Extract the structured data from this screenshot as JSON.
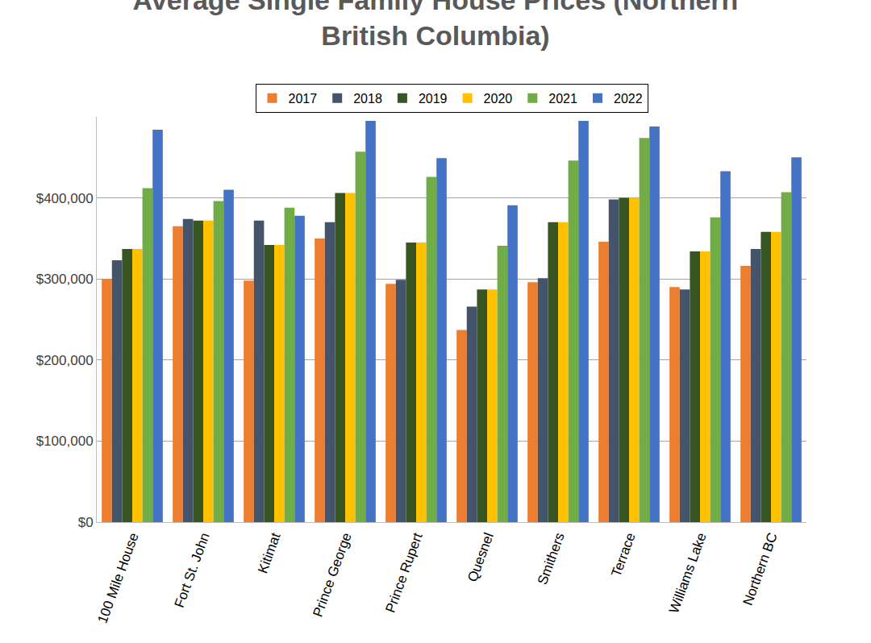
{
  "chart_data": {
    "type": "bar",
    "title": "Average Single Family House Prices (Northern British Columbia)",
    "categories": [
      "100 Mile House",
      "Fort St. John",
      "Kitimat",
      "Prince George",
      "Prince Rupert",
      "Quesnel",
      "Smithers",
      "Terrace",
      "Williams Lake",
      "Northern BC"
    ],
    "series": [
      {
        "name": "2017",
        "color": "#ED7D31",
        "values": [
          300000,
          365000,
          298000,
          350000,
          294000,
          237000,
          296000,
          346000,
          290000,
          316000
        ]
      },
      {
        "name": "2018",
        "color": "#44546A",
        "values": [
          323000,
          374000,
          372000,
          370000,
          299000,
          266000,
          301000,
          398000,
          287000,
          337000
        ]
      },
      {
        "name": "2019",
        "color": "#375623",
        "values": [
          337000,
          372000,
          342000,
          406000,
          345000,
          287000,
          370000,
          400000,
          334000,
          358000
        ]
      },
      {
        "name": "2020",
        "color": "#FFC000",
        "values": [
          337000,
          372000,
          342000,
          406000,
          345000,
          287000,
          370000,
          400000,
          334000,
          358000
        ]
      },
      {
        "name": "2021",
        "color": "#70AD47",
        "values": [
          412000,
          396000,
          388000,
          457000,
          426000,
          341000,
          446000,
          474000,
          376000,
          407000
        ]
      },
      {
        "name": "2022",
        "color": "#4472C4",
        "values": [
          484000,
          410000,
          378000,
          495000,
          449000,
          391000,
          495000,
          488000,
          433000,
          450000
        ]
      }
    ],
    "ylim": [
      0,
      500000
    ],
    "yticks": [
      {
        "value": 0,
        "label": "$0"
      },
      {
        "value": 100000,
        "label": "$100,000"
      },
      {
        "value": 200000,
        "label": "$200,000"
      },
      {
        "value": 300000,
        "label": "$300,000"
      },
      {
        "value": 400000,
        "label": "$400,000"
      }
    ],
    "grid": true,
    "legend": "top"
  }
}
